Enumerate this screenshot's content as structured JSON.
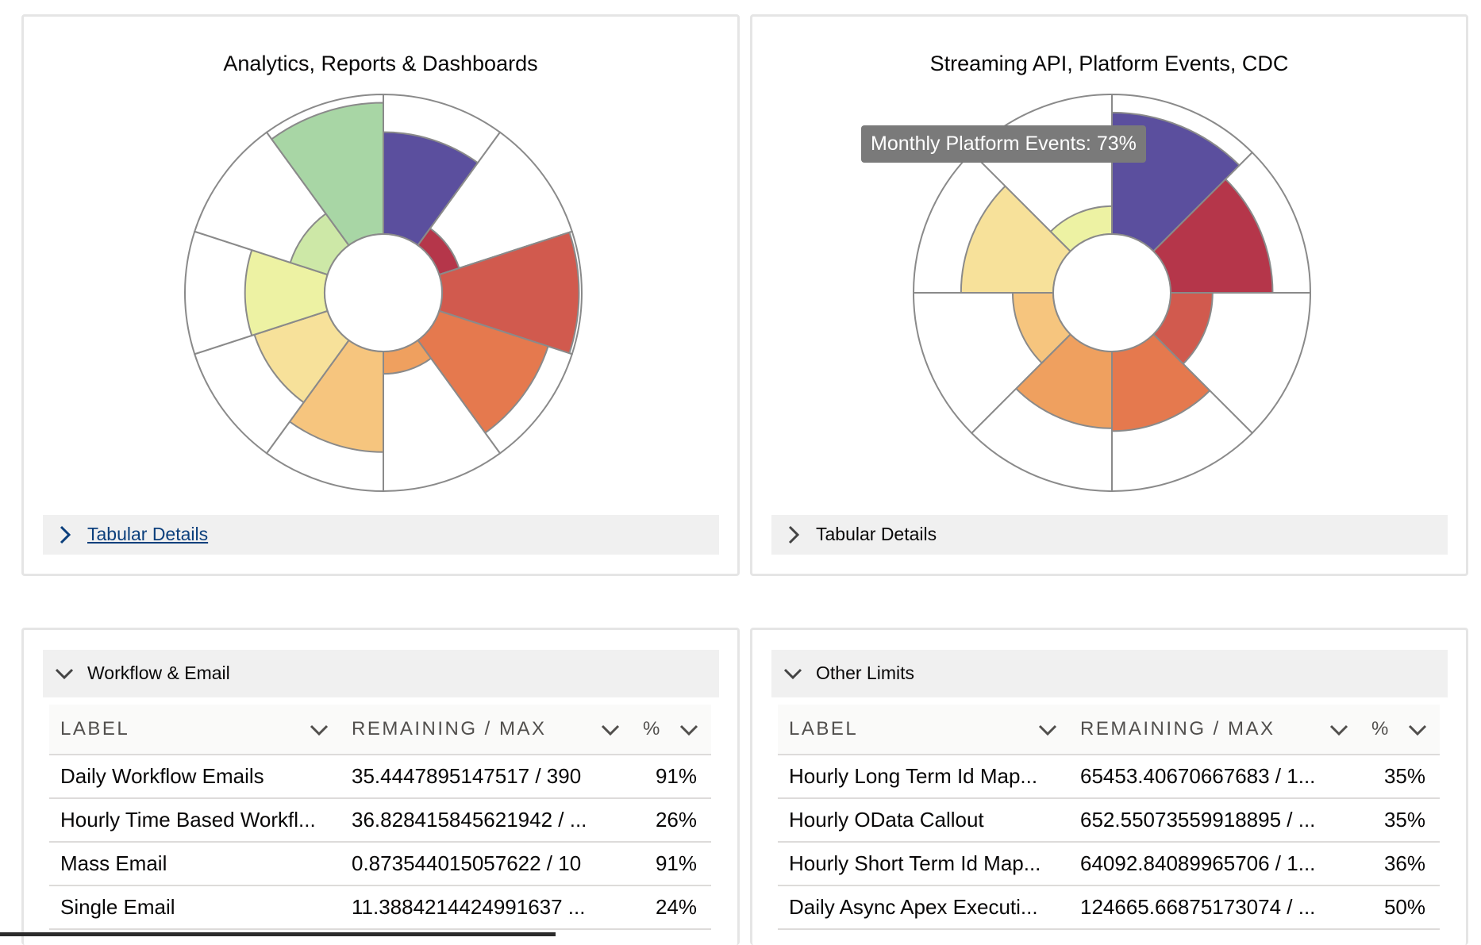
{
  "charts": [
    {
      "title": "Analytics, Reports & Dashboards",
      "details_label": "Tabular Details",
      "chart_data": {
        "type": "polar-area",
        "segments": [
          {
            "color": "#5b4f9e",
            "value": 0.73
          },
          {
            "color": "#b5364a",
            "value": 0.15
          },
          {
            "color": "#d15a4e",
            "value": 0.98
          },
          {
            "color": "#e5794e",
            "value": 0.82
          },
          {
            "color": "#efa05f",
            "value": 0.16
          },
          {
            "color": "#f6c57e",
            "value": 0.72
          },
          {
            "color": "#f7e19a",
            "value": 0.55
          },
          {
            "color": "#edf2a3",
            "value": 0.57
          },
          {
            "color": "#cde8a7",
            "value": 0.28
          },
          {
            "color": "#a8d6a5",
            "value": 0.94
          }
        ]
      }
    },
    {
      "title": "Streaming API, Platform Events, CDC",
      "details_label": "Tabular Details",
      "tooltip": "Monthly Platform Events: 73%",
      "chart_data": {
        "type": "polar-area",
        "segments": [
          {
            "color": "#5b4f9e",
            "value": 0.87
          },
          {
            "color": "#b5364a",
            "value": 0.73
          },
          {
            "color": "#d15a4e",
            "value": 0.3
          },
          {
            "color": "#e5794e",
            "value": 0.57
          },
          {
            "color": "#efa05f",
            "value": 0.55
          },
          {
            "color": "#f6c57e",
            "value": 0.29
          },
          {
            "color": "#f7e19a",
            "value": 0.66
          },
          {
            "color": "#edf2a3",
            "value": 0.2
          }
        ]
      }
    }
  ],
  "tables": [
    {
      "title": "Workflow & Email",
      "columns": [
        "LABEL",
        "REMAINING / MAX",
        "%"
      ],
      "rows": [
        {
          "label": "Daily Workflow Emails",
          "remaining": "35.4447895147517 / 390",
          "pct": "91%"
        },
        {
          "label": "Hourly Time Based Workfl...",
          "remaining": "36.828415845621942 / ...",
          "pct": "26%"
        },
        {
          "label": "Mass Email",
          "remaining": "0.873544015057622 / 10",
          "pct": "91%"
        },
        {
          "label": "Single Email",
          "remaining": "11.3884214424991637 ...",
          "pct": "24%"
        }
      ]
    },
    {
      "title": "Other Limits",
      "columns": [
        "LABEL",
        "REMAINING / MAX",
        "%"
      ],
      "rows": [
        {
          "label": "Hourly Long Term Id Map...",
          "remaining": "65453.40670667683 / 1...",
          "pct": "35%"
        },
        {
          "label": "Hourly OData Callout",
          "remaining": "652.55073559918895 / ...",
          "pct": "35%"
        },
        {
          "label": "Hourly Short Term Id Map...",
          "remaining": "64092.84089965706 / 1...",
          "pct": "36%"
        },
        {
          "label": "Daily Async Apex Executi...",
          "remaining": "124665.66875173074 / ...",
          "pct": "50%"
        }
      ]
    }
  ],
  "icons": {
    "collapsed": "chevron-right-icon",
    "expanded": "chevron-down-icon",
    "sort": "chevron-down-icon"
  }
}
